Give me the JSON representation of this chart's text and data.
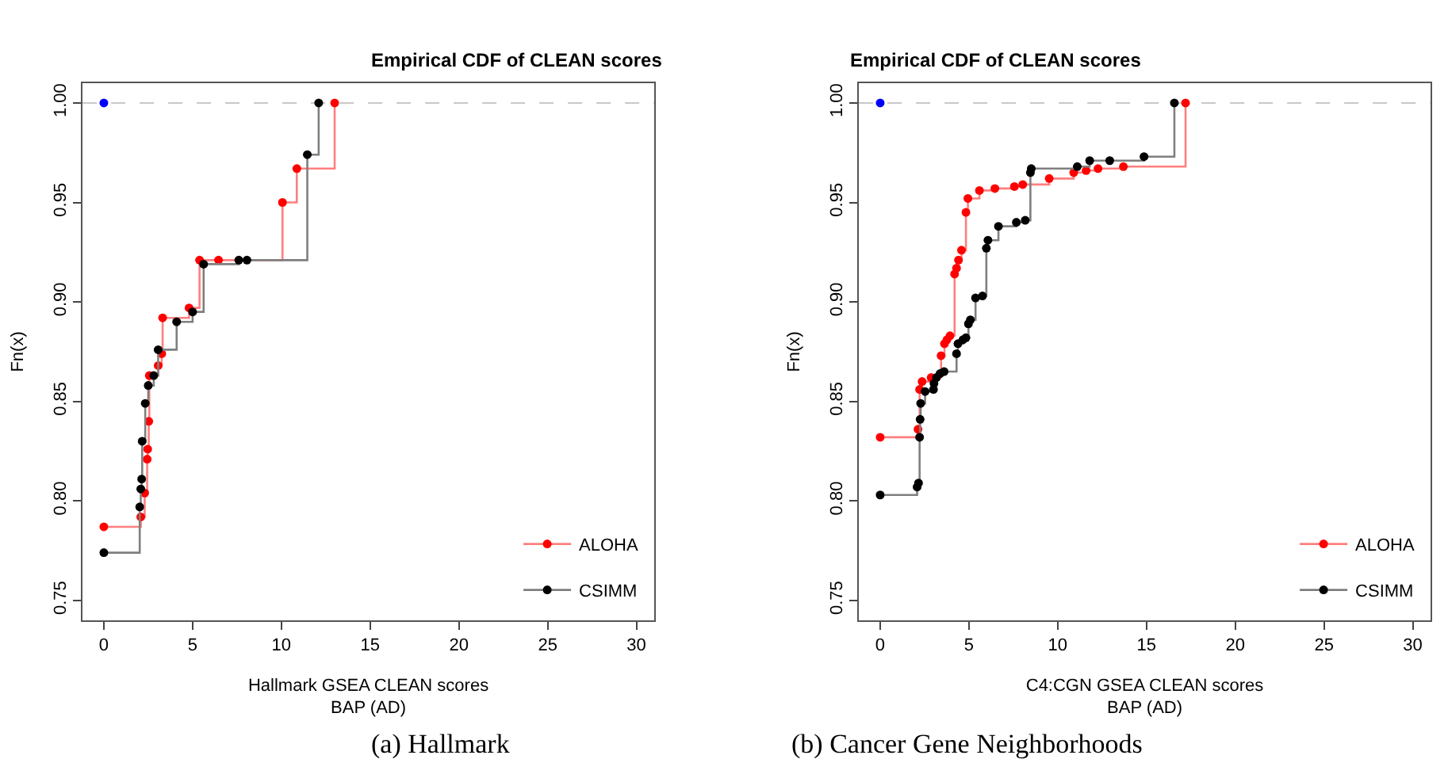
{
  "chart_data": [
    {
      "type": "step",
      "title": "Empirical CDF of CLEAN scores",
      "xlabel": "Hallmark GSEA CLEAN scores\nBAP (AD)",
      "ylabel": "Fn(x)",
      "xlim": [
        -1.2,
        31
      ],
      "xticks": [
        0,
        5,
        10,
        15,
        20,
        25,
        30
      ],
      "ylim": [
        0.74,
        1.01
      ],
      "yticks": [
        0.75,
        {
          "value": 0.8,
          "label": "0.80"
        },
        0.85,
        {
          "value": 0.9,
          "label": "0.90"
        },
        0.95,
        {
          "value": 1,
          "label": "1.00"
        }
      ],
      "grid": false,
      "legend": "bottom right",
      "marker": "circle",
      "ref_lines": [
        {
          "axis": "y",
          "value": 1,
          "label": null,
          "color": "#c8c8c8",
          "line_style": "dashed"
        }
      ],
      "annotations": [
        "(a) Hallmark"
      ],
      "series": [
        {
          "name": "ALOHA",
          "color": "#ff0000",
          "x": [
            0,
            2.08,
            2.3,
            2.44,
            2.47,
            2.53,
            2.56,
            3.06,
            3.26,
            3.31,
            4.8,
            5.39,
            6.46,
            10.06,
            10.87,
            13.0
          ],
          "values": [
            0.787,
            0.792,
            0.804,
            0.821,
            0.826,
            0.84,
            0.863,
            0.868,
            0.874,
            0.892,
            0.897,
            0.921,
            0.921,
            0.95,
            0.967,
            1.0
          ]
        },
        {
          "color": "#0000ff",
          "x": [
            0
          ],
          "values": [
            1.0
          ]
        },
        {
          "name": "CSIMM",
          "color": "#000000",
          "x": [
            0,
            2.02,
            2.08,
            2.13,
            2.16,
            2.33,
            2.5,
            2.81,
            3.06,
            4.1,
            5.0,
            5.62,
            7.6,
            8.06,
            11.46,
            12.1
          ],
          "values": [
            0.774,
            0.797,
            0.806,
            0.811,
            0.83,
            0.849,
            0.858,
            0.863,
            0.876,
            0.89,
            0.895,
            0.919,
            0.921,
            0.921,
            0.974,
            1.0
          ]
        }
      ]
    },
    {
      "type": "step",
      "title": "Empirical CDF of CLEAN scores",
      "xlabel": "C4:CGN GSEA CLEAN scores\nBAP (AD)",
      "ylabel": "Fn(x)",
      "xlim": [
        -1.2,
        31
      ],
      "xticks": [
        0,
        5,
        10,
        15,
        20,
        25,
        30
      ],
      "ylim": [
        0.74,
        1.01
      ],
      "yticks": [
        0.75,
        {
          "value": 0.8,
          "label": "0.80"
        },
        0.85,
        {
          "value": 0.9,
          "label": "0.90"
        },
        0.95,
        {
          "value": 1,
          "label": "1.00"
        }
      ],
      "grid": false,
      "legend": "bottom right",
      "marker": "circle",
      "ref_lines": [
        {
          "axis": "y",
          "value": 1,
          "label": null,
          "color": "#c8c8c8",
          "line_style": "dashed"
        }
      ],
      "annotations": [
        "(b) Cancer Gene Neighborhoods"
      ],
      "series": [
        {
          "name": "ALOHA",
          "color": "#ff0000",
          "x": [
            0,
            2.13,
            2.22,
            2.36,
            2.87,
            3.43,
            3.62,
            3.76,
            3.93,
            4.19,
            4.3,
            4.41,
            4.58,
            4.83,
            4.94,
            5.59,
            6.46,
            7.56,
            8.03,
            9.52,
            10.9,
            11.6,
            12.27,
            13.7,
            17.2
          ],
          "values": [
            0.832,
            0.836,
            0.856,
            0.86,
            0.862,
            0.873,
            0.879,
            0.881,
            0.883,
            0.914,
            0.917,
            0.921,
            0.926,
            0.945,
            0.952,
            0.956,
            0.957,
            0.958,
            0.959,
            0.962,
            0.965,
            0.966,
            0.967,
            0.968,
            1.0
          ]
        },
        {
          "color": "#0000ff",
          "x": [
            0
          ],
          "values": [
            1.0
          ]
        },
        {
          "name": "CSIMM",
          "color": "#000000",
          "x": [
            0,
            2.08,
            2.16,
            2.22,
            2.25,
            2.28,
            2.53,
            3.0,
            3.03,
            3.17,
            3.37,
            3.6,
            4.3,
            4.38,
            4.66,
            4.83,
            4.97,
            5.08,
            5.37,
            5.76,
            5.98,
            6.07,
            6.66,
            7.67,
            8.17,
            8.46,
            8.51,
            11.1,
            11.8,
            12.93,
            14.86,
            16.57
          ],
          "values": [
            0.803,
            0.807,
            0.809,
            0.832,
            0.841,
            0.849,
            0.855,
            0.856,
            0.859,
            0.862,
            0.864,
            0.865,
            0.874,
            0.879,
            0.881,
            0.882,
            0.889,
            0.891,
            0.902,
            0.903,
            0.927,
            0.931,
            0.938,
            0.94,
            0.941,
            0.965,
            0.967,
            0.968,
            0.971,
            0.971,
            0.973,
            1.0
          ]
        }
      ]
    }
  ]
}
